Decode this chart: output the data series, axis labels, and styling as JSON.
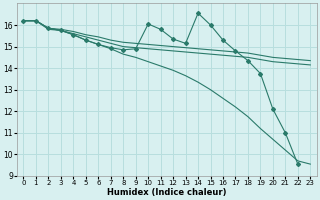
{
  "title": "",
  "xlabel": "Humidex (Indice chaleur)",
  "ylabel": "",
  "background_color": "#d8f0f0",
  "grid_color": "#b8dede",
  "line_color": "#2a7a6a",
  "xlim": [
    -0.5,
    23.5
  ],
  "ylim": [
    9,
    17
  ],
  "yticks": [
    9,
    10,
    11,
    12,
    13,
    14,
    15,
    16
  ],
  "xticks": [
    0,
    1,
    2,
    3,
    4,
    5,
    6,
    7,
    8,
    9,
    10,
    11,
    12,
    13,
    14,
    15,
    16,
    17,
    18,
    19,
    20,
    21,
    22,
    23
  ],
  "series": [
    {
      "x": [
        0,
        1,
        2,
        3,
        4,
        5,
        6,
        7,
        8,
        9,
        10,
        11,
        12,
        13,
        14,
        15,
        16,
        17,
        18,
        19,
        20,
        21,
        22,
        23
      ],
      "y": [
        16.2,
        16.2,
        15.85,
        15.8,
        15.7,
        15.55,
        15.45,
        15.3,
        15.2,
        15.15,
        15.1,
        15.05,
        15.0,
        14.95,
        14.9,
        14.85,
        14.8,
        14.75,
        14.7,
        14.6,
        14.5,
        14.45,
        14.4,
        14.35
      ],
      "marker": false
    },
    {
      "x": [
        0,
        1,
        2,
        3,
        4,
        5,
        6,
        7,
        8,
        9,
        10,
        11,
        12,
        13,
        14,
        15,
        16,
        17,
        18,
        19,
        20,
        21,
        22,
        23
      ],
      "y": [
        16.2,
        16.2,
        15.8,
        15.75,
        15.6,
        15.45,
        15.3,
        15.15,
        15.0,
        14.95,
        14.9,
        14.85,
        14.8,
        14.75,
        14.7,
        14.65,
        14.6,
        14.55,
        14.5,
        14.4,
        14.3,
        14.25,
        14.2,
        14.15
      ],
      "marker": false
    },
    {
      "x": [
        0,
        1,
        2,
        3,
        4,
        5,
        6,
        7,
        8,
        9,
        10,
        11,
        12,
        13,
        14,
        15,
        16,
        17,
        18,
        19,
        20,
        21,
        22
      ],
      "y": [
        16.2,
        16.2,
        15.85,
        15.75,
        15.55,
        15.3,
        15.1,
        14.95,
        14.85,
        14.9,
        16.05,
        15.8,
        15.35,
        15.15,
        16.55,
        16.0,
        15.3,
        14.8,
        14.35,
        13.75,
        12.1,
        11.0,
        9.55
      ],
      "marker": true
    },
    {
      "x": [
        0,
        1,
        2,
        3,
        4,
        5,
        6,
        7,
        8,
        9,
        10,
        11,
        12,
        13,
        14,
        15,
        16,
        17,
        18,
        19,
        20,
        21,
        22,
        23
      ],
      "y": [
        16.2,
        16.2,
        15.85,
        15.75,
        15.55,
        15.3,
        15.1,
        14.9,
        14.65,
        14.5,
        14.3,
        14.1,
        13.9,
        13.65,
        13.35,
        13.0,
        12.6,
        12.2,
        11.75,
        11.2,
        10.7,
        10.2,
        9.7,
        9.55
      ],
      "marker": false
    }
  ]
}
